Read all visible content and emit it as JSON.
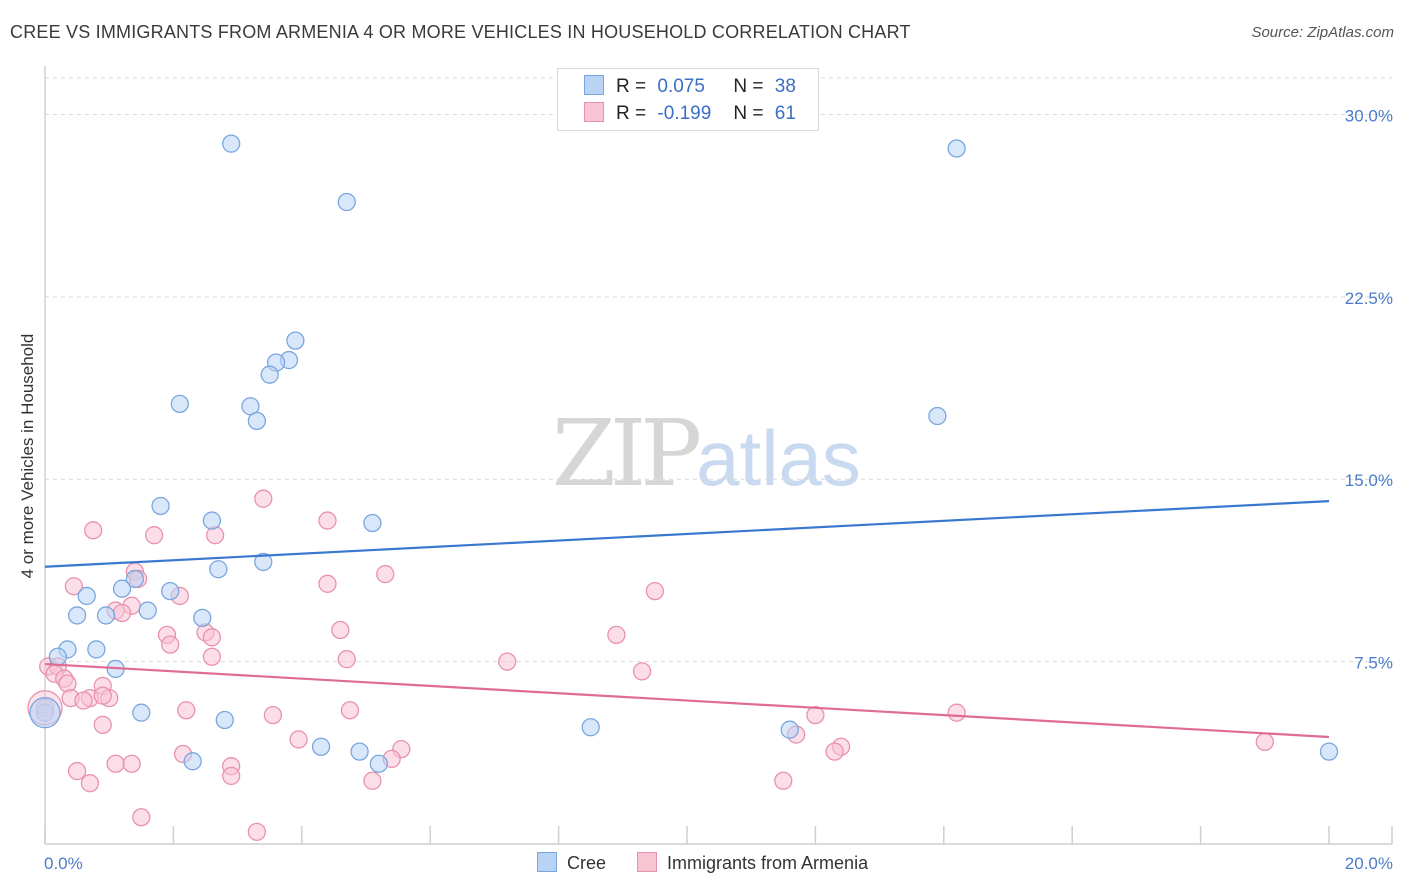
{
  "title": "CREE VS IMMIGRANTS FROM ARMENIA 4 OR MORE VEHICLES IN HOUSEHOLD CORRELATION CHART",
  "source": "Source: ZipAtlas.com",
  "watermark": {
    "zip": "ZIP",
    "atlas": "atlas"
  },
  "legend_top": [
    {
      "r_label": "R =",
      "r_value": "0.075",
      "n_label": "N =",
      "n_value": "38"
    },
    {
      "r_label": "R =",
      "r_value": "-0.199",
      "n_label": "N =",
      "n_value": "61"
    }
  ],
  "colors": {
    "cree_fill": "#b9d3f5",
    "cree_stroke": "#7aa6df",
    "cree_line": "#3a78cf",
    "armenia_fill": "#f8c3d3",
    "armenia_stroke": "#e992ae",
    "armenia_line": "#e06c96",
    "tick_text": "#4a7cc9",
    "grid": "#d9d9d9"
  },
  "chart_data": {
    "type": "scatter",
    "title": "CREE VS IMMIGRANTS FROM ARMENIA 4 OR MORE VEHICLES IN HOUSEHOLD CORRELATION CHART",
    "xlabel": "",
    "ylabel": "4 or more Vehicles in Household",
    "xlim": [
      0,
      20
    ],
    "ylim": [
      0,
      31.5
    ],
    "x_tick_labels": [
      "0.0%",
      "20.0%"
    ],
    "y_ticks": [
      7.5,
      15.0,
      22.5,
      30.0
    ],
    "y_tick_labels": [
      "7.5%",
      "15.0%",
      "22.5%",
      "30.0%"
    ],
    "grid": true,
    "legend": [
      "Cree",
      "Immigrants from Armenia"
    ],
    "series": [
      {
        "name": "Cree",
        "R": 0.075,
        "N": 38,
        "trend": {
          "x": [
            0,
            20
          ],
          "y": [
            11.4,
            14.1
          ]
        },
        "points": [
          [
            2.9,
            28.8
          ],
          [
            14.2,
            28.6
          ],
          [
            4.7,
            26.4
          ],
          [
            3.9,
            20.7
          ],
          [
            3.8,
            19.9
          ],
          [
            3.6,
            19.8
          ],
          [
            3.5,
            19.3
          ],
          [
            2.1,
            18.1
          ],
          [
            3.2,
            18.0
          ],
          [
            3.3,
            17.4
          ],
          [
            13.9,
            17.6
          ],
          [
            1.8,
            13.9
          ],
          [
            2.6,
            13.3
          ],
          [
            5.1,
            13.2
          ],
          [
            3.4,
            11.6
          ],
          [
            2.7,
            11.3
          ],
          [
            1.4,
            10.9
          ],
          [
            1.2,
            10.5
          ],
          [
            1.95,
            10.4
          ],
          [
            0.65,
            10.2
          ],
          [
            0.5,
            9.4
          ],
          [
            0.95,
            9.4
          ],
          [
            1.6,
            9.6
          ],
          [
            2.45,
            9.3
          ],
          [
            0.35,
            8.0
          ],
          [
            0.8,
            8.0
          ],
          [
            0.2,
            7.7
          ],
          [
            1.1,
            7.2
          ],
          [
            0.0,
            5.4
          ],
          [
            1.5,
            5.4
          ],
          [
            2.8,
            5.1
          ],
          [
            8.5,
            4.8
          ],
          [
            11.6,
            4.7
          ],
          [
            4.3,
            4.0
          ],
          [
            4.9,
            3.8
          ],
          [
            2.3,
            3.4
          ],
          [
            5.2,
            3.3
          ],
          [
            20.0,
            3.8
          ]
        ]
      },
      {
        "name": "Immigrants from Armenia",
        "R": -0.199,
        "N": 61,
        "trend": {
          "x": [
            0,
            20
          ],
          "y": [
            7.4,
            4.4
          ]
        },
        "points": [
          [
            3.4,
            14.2
          ],
          [
            4.4,
            13.3
          ],
          [
            0.75,
            12.9
          ],
          [
            1.7,
            12.7
          ],
          [
            2.65,
            12.7
          ],
          [
            1.4,
            11.2
          ],
          [
            5.3,
            11.1
          ],
          [
            0.45,
            10.6
          ],
          [
            4.4,
            10.7
          ],
          [
            9.5,
            10.4
          ],
          [
            1.45,
            10.9
          ],
          [
            2.1,
            10.2
          ],
          [
            1.35,
            9.8
          ],
          [
            1.1,
            9.6
          ],
          [
            1.2,
            9.5
          ],
          [
            4.6,
            8.8
          ],
          [
            1.9,
            8.6
          ],
          [
            2.5,
            8.7
          ],
          [
            2.6,
            8.5
          ],
          [
            8.9,
            8.6
          ],
          [
            1.95,
            8.2
          ],
          [
            2.6,
            7.7
          ],
          [
            4.7,
            7.6
          ],
          [
            7.2,
            7.5
          ],
          [
            0.05,
            7.3
          ],
          [
            0.2,
            7.3
          ],
          [
            0.15,
            7.0
          ],
          [
            9.3,
            7.1
          ],
          [
            0.3,
            6.8
          ],
          [
            0.35,
            6.6
          ],
          [
            0.9,
            6.5
          ],
          [
            0.4,
            6.0
          ],
          [
            0.7,
            6.0
          ],
          [
            1.0,
            6.0
          ],
          [
            0.6,
            5.9
          ],
          [
            0.9,
            6.1
          ],
          [
            0.0,
            5.6
          ],
          [
            2.2,
            5.5
          ],
          [
            3.55,
            5.3
          ],
          [
            4.75,
            5.5
          ],
          [
            12.0,
            5.3
          ],
          [
            14.2,
            5.4
          ],
          [
            0.9,
            4.9
          ],
          [
            11.7,
            4.5
          ],
          [
            3.95,
            4.3
          ],
          [
            5.55,
            3.9
          ],
          [
            2.15,
            3.7
          ],
          [
            12.4,
            4.0
          ],
          [
            12.3,
            3.8
          ],
          [
            5.4,
            3.5
          ],
          [
            1.1,
            3.3
          ],
          [
            1.35,
            3.3
          ],
          [
            2.9,
            3.2
          ],
          [
            0.5,
            3.0
          ],
          [
            2.9,
            2.8
          ],
          [
            5.1,
            2.6
          ],
          [
            0.7,
            2.5
          ],
          [
            11.5,
            2.6
          ],
          [
            19.0,
            4.2
          ],
          [
            1.5,
            1.1
          ],
          [
            3.3,
            0.5
          ]
        ]
      }
    ]
  }
}
